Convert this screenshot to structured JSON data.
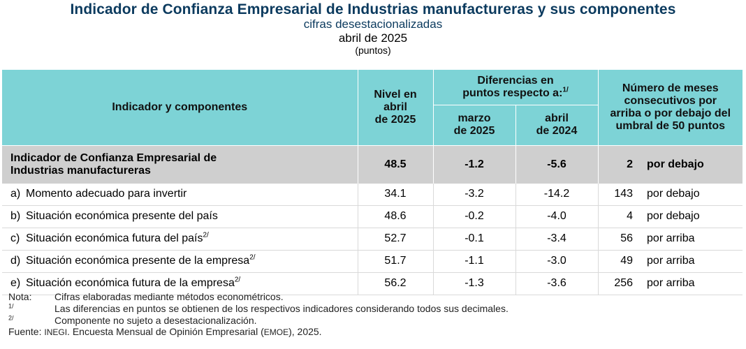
{
  "header": {
    "title": "Indicador de Confianza Empresarial de Industrias manufactureras y sus componentes",
    "subtitle": "cifras desestacionalizadas",
    "date": "abril de 2025",
    "units": "(puntos)"
  },
  "table": {
    "col_indicator": "Indicador y componentes",
    "col_level_1": "Nivel en",
    "col_level_2": "abril",
    "col_level_3": "de 2025",
    "col_diff_1": "Diferencias en",
    "col_diff_2": "puntos respecto a:",
    "col_diff_sup": "1/",
    "col_diff_a_1": "marzo",
    "col_diff_a_2": "de 2025",
    "col_diff_b_1": "abril",
    "col_diff_b_2": "de 2024",
    "col_months_1": "Número de meses",
    "col_months_2": "consecutivos por",
    "col_months_3": "arriba o por debajo del",
    "col_months_4": "umbral de 50 puntos",
    "summary": {
      "name_1": "Indicador de Confianza Empresarial de",
      "name_2": "Industrias manufactureras",
      "level": "48.5",
      "diff_month": "-1.2",
      "diff_year": "-5.6",
      "months": "2",
      "direction": "por debajo"
    },
    "rows": [
      {
        "letter": "a)",
        "name": "Momento adecuado para invertir",
        "sup": "",
        "level": "34.1",
        "diff_month": "-3.2",
        "diff_year": "-14.2",
        "months": "143",
        "direction": "por debajo"
      },
      {
        "letter": "b)",
        "name": "Situación económica presente del país",
        "sup": "",
        "level": "48.6",
        "diff_month": "-0.2",
        "diff_year": "-4.0",
        "months": "4",
        "direction": "por debajo"
      },
      {
        "letter": "c)",
        "name": "Situación económica futura del país",
        "sup": "2/",
        "level": "52.7",
        "diff_month": "-0.1",
        "diff_year": "-3.4",
        "months": "56",
        "direction": "por arriba"
      },
      {
        "letter": "d)",
        "name": "Situación económica presente de la empresa",
        "sup": "2/",
        "level": "51.7",
        "diff_month": "-1.1",
        "diff_year": "-3.0",
        "months": "49",
        "direction": "por arriba"
      },
      {
        "letter": "e)",
        "name": "Situación económica futura de la empresa",
        "sup": "2/",
        "level": "56.2",
        "diff_month": "-1.3",
        "diff_year": "-3.6",
        "months": "256",
        "direction": "por arriba"
      }
    ]
  },
  "notes": {
    "nota_label": "Nota:",
    "nota_text": "Cifras elaboradas mediante métodos econométricos.",
    "n1_label": "1/",
    "n1_text": "Las diferencias en puntos se obtienen de los respectivos indicadores considerando todos sus decimales.",
    "n2_label": "2/",
    "n2_text": "Componente no sujeto a desestacionalización.",
    "source_label": "Fuente:",
    "source_inegi": "INEGI",
    "source_text_1": ". Encuesta Mensual de Opinión Empresarial (",
    "source_emoe": "EMOE",
    "source_text_2": "), 2025."
  },
  "colors": {
    "title": "#0b3a5e",
    "header_bg": "#7dd3d6",
    "summary_bg": "#cfcfcf"
  }
}
